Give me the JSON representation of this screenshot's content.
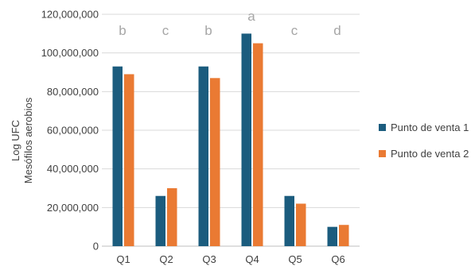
{
  "chart_data": {
    "type": "bar",
    "title": "",
    "xlabel": "",
    "ylabel_lines": [
      "Log UFC",
      "Mesófilos aerobios"
    ],
    "categories": [
      "Q1",
      "Q2",
      "Q3",
      "Q4",
      "Q5",
      "Q6"
    ],
    "group_letters": [
      "b",
      "c",
      "b",
      "a",
      "c",
      "d"
    ],
    "series": [
      {
        "name": "Punto de venta 1",
        "color": "#1b5c7e",
        "values": [
          93000000,
          26000000,
          93000000,
          110000000,
          26000000,
          10000000
        ]
      },
      {
        "name": "Punto de venta 2",
        "color": "#ea7a33",
        "values": [
          89000000,
          30000000,
          87000000,
          105000000,
          22000000,
          11000000
        ]
      }
    ],
    "ylim": [
      0,
      120000000
    ],
    "yticks": [
      "0",
      "20,000,000",
      "40,000,000",
      "60,000,000",
      "80,000,000",
      "100,000,000",
      "120,000,000"
    ],
    "grid": true,
    "legend_position": "right",
    "letter_color": "#a6a6a6",
    "grid_color": "#d9d9d9",
    "text_color": "#404040"
  }
}
